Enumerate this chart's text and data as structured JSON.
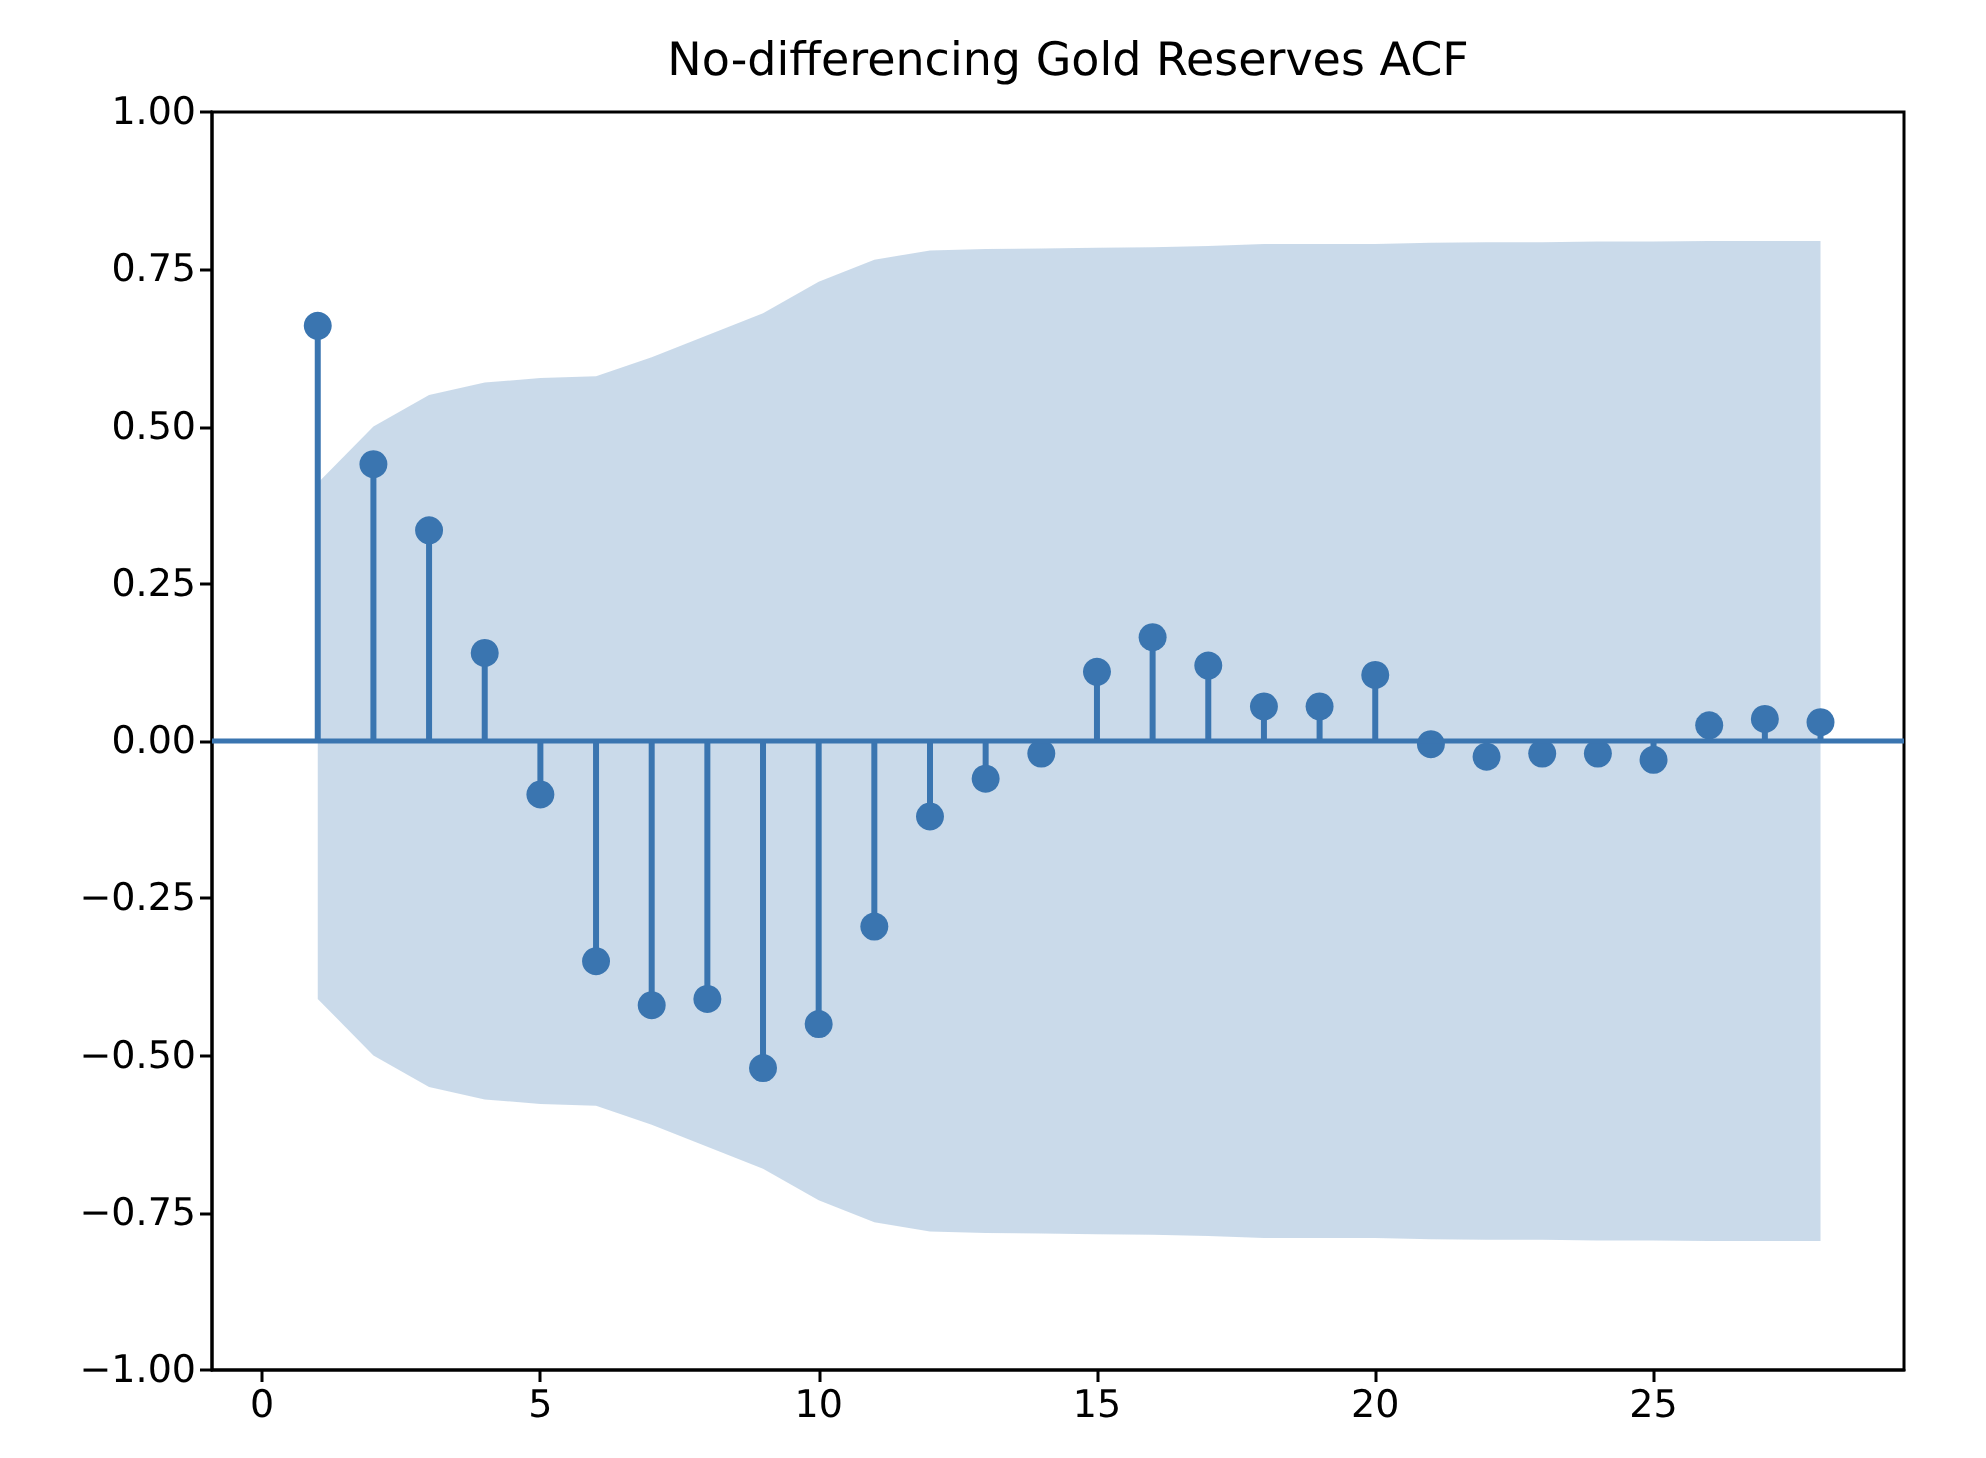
{
  "chart_data": {
    "type": "lollipop",
    "title": "No-differencing Gold Reserves ACF",
    "x": [
      1,
      2,
      3,
      4,
      5,
      6,
      7,
      8,
      9,
      10,
      11,
      12,
      13,
      14,
      15,
      16,
      17,
      18,
      19,
      20,
      21,
      22,
      23,
      24,
      25,
      26,
      27,
      28
    ],
    "series": [
      {
        "color": "#3a75b0",
        "values": [
          0.66,
          0.44,
          0.335,
          0.14,
          -0.085,
          -0.35,
          -0.42,
          -0.41,
          -0.52,
          -0.45,
          -0.295,
          -0.12,
          -0.06,
          -0.02,
          0.11,
          0.165,
          0.12,
          0.055,
          0.055,
          0.105,
          -0.005,
          -0.025,
          -0.02,
          -0.02,
          -0.03,
          0.025,
          0.035,
          0.03
        ],
        "upper": [
          0.41,
          0.5,
          0.55,
          0.57,
          0.577,
          0.58,
          0.61,
          0.645,
          0.68,
          0.73,
          0.765,
          0.78,
          0.782,
          0.783,
          0.784,
          0.785,
          0.787,
          0.79,
          0.79,
          0.79,
          0.792,
          0.793,
          0.793,
          0.794,
          0.794,
          0.795,
          0.795,
          0.795
        ],
        "lower": [
          -0.41,
          -0.5,
          -0.55,
          -0.57,
          -0.577,
          -0.58,
          -0.61,
          -0.645,
          -0.68,
          -0.73,
          -0.765,
          -0.78,
          -0.782,
          -0.783,
          -0.784,
          -0.785,
          -0.787,
          -0.79,
          -0.79,
          -0.79,
          -0.792,
          -0.793,
          -0.793,
          -0.794,
          -0.794,
          -0.795,
          -0.795,
          -0.795
        ]
      }
    ],
    "ref_lines": [
      {
        "axis": "y",
        "value": 0,
        "color": "#3a75b0"
      }
    ],
    "xlim": [
      -0.9,
      29.5
    ],
    "ylim": [
      -1,
      1
    ],
    "xticks": [
      0,
      5,
      10,
      15,
      20,
      25
    ],
    "yticks": [
      {
        "value": -1,
        "label": "−1.00"
      },
      {
        "value": -0.75,
        "label": "−0.75"
      },
      {
        "value": -0.5,
        "label": "−0.50"
      },
      {
        "value": -0.25,
        "label": "−0.25"
      },
      {
        "value": 0,
        "label": "0.00"
      },
      {
        "value": 0.25,
        "label": "0.25"
      },
      {
        "value": 0.5,
        "label": "0.50"
      },
      {
        "value": 0.75,
        "label": "0.75"
      },
      {
        "value": 1,
        "label": "1.00"
      }
    ],
    "grid": false,
    "marker": "circle"
  }
}
